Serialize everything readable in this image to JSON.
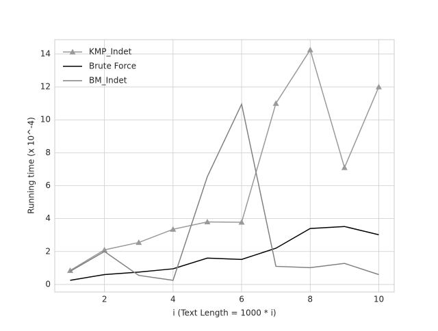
{
  "chart_data": {
    "type": "line",
    "x_label": "i (Text Length = 1000 * i)",
    "y_label": "Running time (x 10^-4)",
    "x": [
      1,
      2,
      3,
      4,
      5,
      6,
      7,
      8,
      9,
      10
    ],
    "series": [
      {
        "name": "KMP_Indet",
        "color": "#999999",
        "marker": "triangle",
        "values": [
          0.85,
          2.1,
          2.55,
          3.35,
          3.8,
          3.78,
          11.0,
          14.25,
          7.1,
          12.0
        ]
      },
      {
        "name": "Brute Force",
        "color": "#000000",
        "values": [
          0.25,
          0.6,
          0.75,
          0.95,
          1.6,
          1.52,
          2.2,
          3.4,
          3.52,
          3.02
        ]
      },
      {
        "name": "BM_Indet",
        "color": "#808080",
        "values": [
          0.8,
          2.0,
          0.55,
          0.25,
          6.55,
          10.95,
          1.1,
          1.02,
          1.28,
          0.6
        ]
      }
    ],
    "xlim": [
      0.55,
      10.45
    ],
    "xticks": [
      2,
      4,
      6,
      8,
      10
    ],
    "ylim": [
      -0.46,
      14.87
    ],
    "yticks": [
      0,
      2,
      4,
      6,
      8,
      10,
      12,
      14
    ],
    "grid": true,
    "legend": "upper-left"
  }
}
